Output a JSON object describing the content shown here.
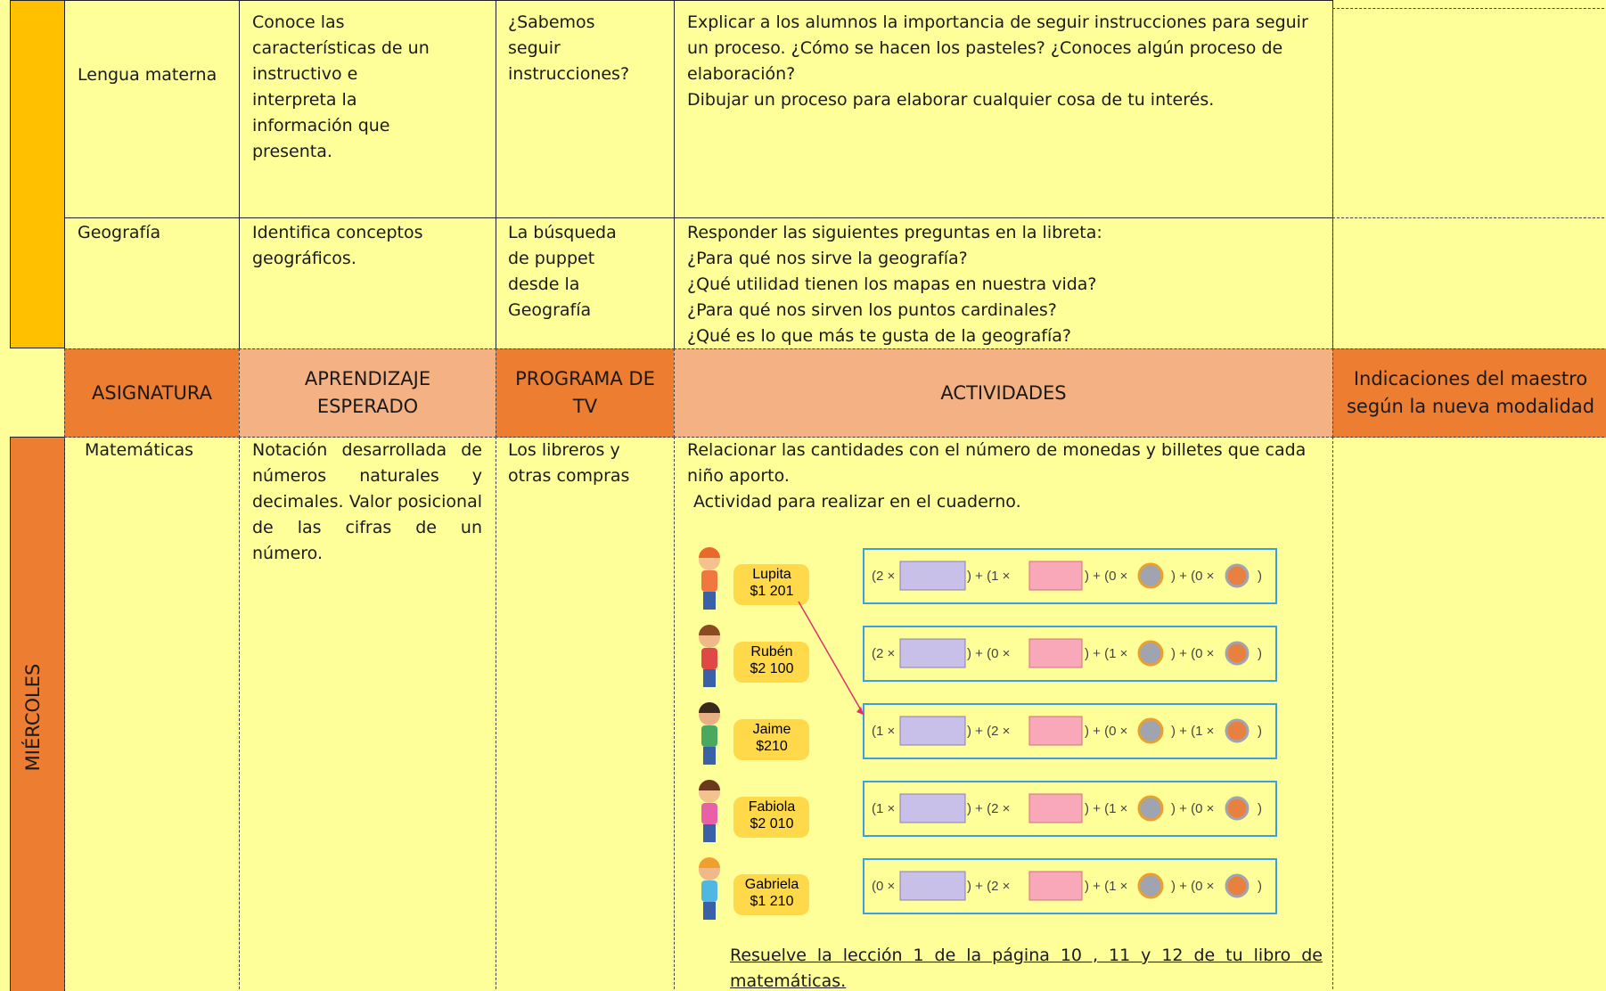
{
  "rows": [
    {
      "subject": "Lengua materna",
      "learning": "Conoce las características de un instructivo e interpreta la información que presenta.",
      "tv": "¿Sabemos seguir instrucciones?",
      "activities": [
        "Explicar a los alumnos la importancia de seguir instrucciones para seguir un proceso. ¿Cómo se hacen los pasteles? ¿Conoces algún proceso de elaboración?",
        "Dibujar un proceso para elaborar cualquier cosa de tu interés."
      ]
    },
    {
      "subject": "Geografía",
      "learning": "Identifica conceptos geográficos.",
      "tv": "La búsqueda de puppet desde la Geografía",
      "activities": [
        "Responder las siguientes preguntas en la libreta:",
        "¿Para qué nos sirve la geografía?",
        "¿Qué utilidad tienen los mapas en nuestra vida?",
        "¿Para qué nos sirven los puntos cardinales?",
        "¿Qué es lo que más te gusta de la geografía?"
      ]
    }
  ],
  "header": {
    "subject": "ASIGNATURA",
    "learning": "APRENDIZAJE ESPERADO",
    "tv": "PROGRAMA DE TV",
    "activities": "ACTIVIDADES",
    "notes": "Indicaciones del maestro según la nueva modalidad"
  },
  "day": "MIÉRCOLES",
  "math": {
    "subject": "Matemáticas",
    "learning": "Notación desarrollada de números naturales y decimales. Valor posicional de las cifras de un número.",
    "tv": "Los libreros y otras compras",
    "activities": [
      "Relacionar las cantidades con el número de monedas y billetes que cada niño aporto.",
      "Actividad para realizar en el cuaderno."
    ],
    "children": [
      {
        "name": "Lupita",
        "amount": "$1 201",
        "expression": [
          "(2 ×",
          ") + (1 ×",
          ") + (0 ×",
          ") + (0 ×",
          ")"
        ]
      },
      {
        "name": "Rubén",
        "amount": "$2 100",
        "expression": [
          "(2 ×",
          ") + (0 ×",
          ") + (1 ×",
          ") + (0 ×",
          ")"
        ]
      },
      {
        "name": "Jaime",
        "amount": "$210",
        "expression": [
          "(1 ×",
          ") + (2 ×",
          ") + (0 ×",
          ") + (1 ×",
          ")"
        ]
      },
      {
        "name": "Fabiola",
        "amount": "$2 010",
        "expression": [
          "(1 ×",
          ") + (2 ×",
          ") + (1 ×",
          ") + (0 ×",
          ")"
        ]
      },
      {
        "name": "Gabriela",
        "amount": "$1 210",
        "expression": [
          "(0 ×",
          ") + (2 ×",
          ") + (1 ×",
          ") + (0 ×",
          ")"
        ]
      }
    ],
    "homework": "Resuelve la lección 1 de la página 10 , 11 y 12 de tu libro de matemáticas."
  }
}
